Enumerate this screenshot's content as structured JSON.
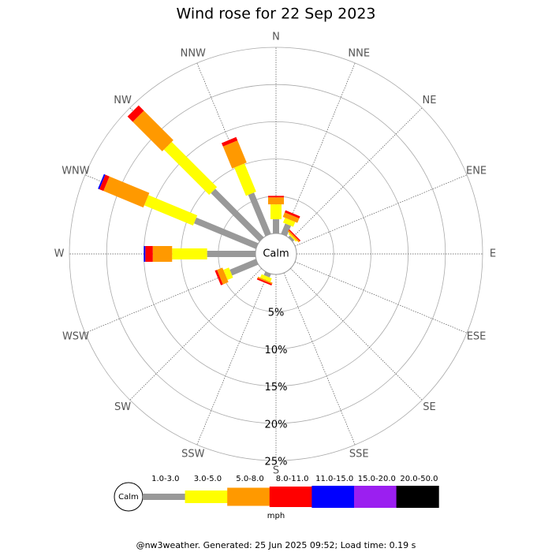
{
  "chart_data": {
    "type": "windrose",
    "title": "Wind rose for 22 Sep 2023",
    "calm_label": "Calm",
    "unit": "mph",
    "directions": [
      "N",
      "NNE",
      "NE",
      "ENE",
      "E",
      "ESE",
      "SE",
      "SSE",
      "S",
      "SSW",
      "SW",
      "WSW",
      "W",
      "WNW",
      "NW",
      "NNW"
    ],
    "series": [
      {
        "name": "1.0-3.0",
        "color": "#999999",
        "values": [
          1.9,
          1.5,
          0.3,
          0,
          0,
          0,
          0,
          0,
          0,
          0.5,
          0,
          3.8,
          6.5,
          9.0,
          9.2,
          6.0
        ]
      },
      {
        "name": "3.0-5.0",
        "color": "#ffff00",
        "values": [
          2.0,
          0.7,
          0.2,
          0,
          0,
          0,
          0,
          0,
          0,
          0.5,
          0,
          0.8,
          4.7,
          7.1,
          8.6,
          4.1
        ]
      },
      {
        "name": "5.0-8.0",
        "color": "#ff9900",
        "values": [
          0.95,
          0.65,
          0.2,
          0,
          0,
          0,
          0,
          0,
          0,
          0.2,
          0,
          0.8,
          2.6,
          5.8,
          5.6,
          3.2
        ]
      },
      {
        "name": "8.0-11.0",
        "color": "#ff0000",
        "values": [
          0.2,
          0.3,
          0.15,
          0,
          0,
          0,
          0,
          0,
          0,
          0.2,
          0,
          0.3,
          1.0,
          0.6,
          1.0,
          0.5
        ]
      },
      {
        "name": "11.0-15.0",
        "color": "#0000ff",
        "values": [
          0,
          0,
          0,
          0,
          0,
          0,
          0,
          0,
          0,
          0,
          0,
          0,
          0.2,
          0.2,
          0,
          0
        ]
      },
      {
        "name": "15.0-20.0",
        "color": "#9b1ff0",
        "values": [
          0,
          0,
          0,
          0,
          0,
          0,
          0,
          0,
          0,
          0,
          0,
          0,
          0,
          0,
          0,
          0
        ]
      },
      {
        "name": "20.0-50.0",
        "color": "#000000",
        "values": [
          0,
          0,
          0,
          0,
          0,
          0,
          0,
          0,
          0,
          0,
          0,
          0,
          0,
          0,
          0,
          0
        ]
      }
    ],
    "rlim": [
      0,
      25
    ],
    "rticks": [
      {
        "value": 5,
        "label": "5%"
      },
      {
        "value": 10,
        "label": "10%"
      },
      {
        "value": 15,
        "label": "15%"
      },
      {
        "value": 20,
        "label": "20%"
      },
      {
        "value": 25,
        "label": "25%"
      }
    ]
  },
  "footer": "@nw3weather. Generated: 25 Jun 2025 09:52; Load time: 0.19 s"
}
